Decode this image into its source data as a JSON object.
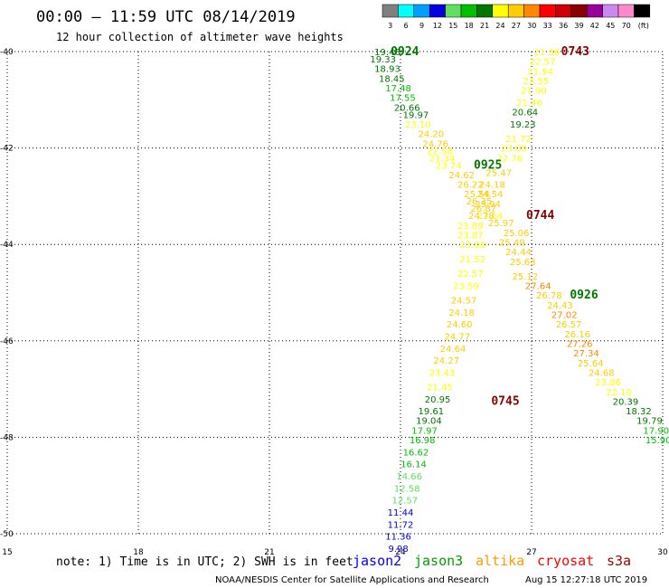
{
  "header": {
    "title": "00:00 – 11:59 UTC 08/14/2019",
    "subtitle": "12 hour collection of altimeter wave heights"
  },
  "legend": {
    "unit": "(ft)",
    "bins": [
      {
        "label": "3",
        "color": "#808080"
      },
      {
        "label": "6",
        "color": "#00ffff"
      },
      {
        "label": "9",
        "color": "#00a0ff"
      },
      {
        "label": "12",
        "color": "#0000e0"
      },
      {
        "label": "15",
        "color": "#60e060"
      },
      {
        "label": "18",
        "color": "#00c000"
      },
      {
        "label": "21",
        "color": "#007800"
      },
      {
        "label": "24",
        "color": "#ffff00"
      },
      {
        "label": "27",
        "color": "#ffcc00"
      },
      {
        "label": "30",
        "color": "#ff8800"
      },
      {
        "label": "33",
        "color": "#ff0000"
      },
      {
        "label": "36",
        "color": "#cc0000"
      },
      {
        "label": "39",
        "color": "#880000"
      },
      {
        "label": "42",
        "color": "#990099"
      },
      {
        "label": "45",
        "color": "#cc88ee"
      },
      {
        "label": "70",
        "color": "#ff88cc"
      },
      {
        "label": "",
        "color": "#000000"
      }
    ]
  },
  "footer": {
    "note": "note: 1) Time is in UTC; 2) SWH is in feet",
    "satellites": [
      {
        "name": "jason2",
        "color": "#0000ff"
      },
      {
        "name": "jason3",
        "color": "#00a000"
      },
      {
        "name": "altika",
        "color": "#ff9900"
      },
      {
        "name": "cryosat",
        "color": "#ff0000"
      },
      {
        "name": "s3a",
        "color": "#990000"
      }
    ],
    "credit": "NOAA/NESDIS Center for Satellite Applications and Research",
    "timestamp": "Aug 15 12:27:18 UTC 2019"
  },
  "chart_data": {
    "type": "scatter",
    "xlim": [
      15,
      30
    ],
    "ylim": [
      -50,
      -40
    ],
    "x_ticks": [
      15,
      18,
      21,
      24,
      27,
      30
    ],
    "y_ticks": [
      -40,
      -42,
      -44,
      -46,
      -48,
      -50
    ],
    "grid": true,
    "pass_labels": [
      {
        "text": "0924",
        "x": 24.1,
        "y": -40.0,
        "color": "#007800"
      },
      {
        "text": "0743",
        "x": 28.0,
        "y": -40.0,
        "color": "#880000"
      },
      {
        "text": "0925",
        "x": 26.0,
        "y": -42.35,
        "color": "#007800"
      },
      {
        "text": "0744",
        "x": 27.2,
        "y": -43.4,
        "color": "#880000"
      },
      {
        "text": "0926",
        "x": 28.2,
        "y": -45.05,
        "color": "#007800"
      },
      {
        "text": "0745",
        "x": 26.4,
        "y": -47.25,
        "color": "#880000"
      }
    ],
    "series": [
      {
        "name": "0924",
        "points": [
          {
            "x": 23.7,
            "y": -40.0,
            "v": 19.46
          },
          {
            "x": 23.6,
            "y": -40.15,
            "v": 19.33
          },
          {
            "x": 23.7,
            "y": -40.35,
            "v": 18.93
          },
          {
            "x": 23.8,
            "y": -40.55,
            "v": 18.45
          },
          {
            "x": 23.95,
            "y": -40.75,
            "v": 17.48
          },
          {
            "x": 24.05,
            "y": -40.95,
            "v": 17.55
          },
          {
            "x": 24.15,
            "y": -41.15,
            "v": 20.66
          },
          {
            "x": 24.35,
            "y": -41.3,
            "v": 19.97
          },
          {
            "x": 24.4,
            "y": -41.5,
            "v": 23.1
          },
          {
            "x": 24.7,
            "y": -41.7,
            "v": 24.2
          },
          {
            "x": 24.8,
            "y": -41.9,
            "v": 24.76
          },
          {
            "x": 24.9,
            "y": -42.05,
            "v": 22.58
          },
          {
            "x": 24.95,
            "y": -42.2,
            "v": 21.34
          },
          {
            "x": 25.1,
            "y": -42.35,
            "v": 23.74
          },
          {
            "x": 25.4,
            "y": -42.55,
            "v": 24.62
          },
          {
            "x": 25.6,
            "y": -42.75,
            "v": 26.22
          },
          {
            "x": 25.75,
            "y": -42.95,
            "v": 25.54
          },
          {
            "x": 25.8,
            "y": -43.1,
            "v": 26.35
          },
          {
            "x": 25.9,
            "y": -43.25,
            "v": 26.87
          },
          {
            "x": 26.05,
            "y": -43.4,
            "v": 23.64
          },
          {
            "x": 26.3,
            "y": -43.55,
            "v": 25.97
          },
          {
            "x": 26.65,
            "y": -43.75,
            "v": 25.06
          },
          {
            "x": 26.55,
            "y": -43.95,
            "v": 25.49
          },
          {
            "x": 26.7,
            "y": -44.15,
            "v": 24.44
          },
          {
            "x": 26.8,
            "y": -44.35,
            "v": 25.63
          },
          {
            "x": 26.85,
            "y": -44.65,
            "v": 25.12
          },
          {
            "x": 27.15,
            "y": -44.85,
            "v": 27.64
          },
          {
            "x": 27.4,
            "y": -45.05,
            "v": 26.78
          },
          {
            "x": 27.65,
            "y": -45.25,
            "v": 24.43
          },
          {
            "x": 27.75,
            "y": -45.45,
            "v": 27.02
          },
          {
            "x": 27.85,
            "y": -45.65,
            "v": 26.57
          },
          {
            "x": 28.05,
            "y": -45.85,
            "v": 26.16
          },
          {
            "x": 28.1,
            "y": -46.05,
            "v": 27.26
          },
          {
            "x": 28.25,
            "y": -46.25,
            "v": 27.34
          },
          {
            "x": 28.35,
            "y": -46.45,
            "v": 25.64
          },
          {
            "x": 28.6,
            "y": -46.65,
            "v": 24.68
          },
          {
            "x": 28.75,
            "y": -46.85,
            "v": 23.86
          },
          {
            "x": 29.0,
            "y": -47.05,
            "v": 22.1
          },
          {
            "x": 29.15,
            "y": -47.25,
            "v": 20.39
          },
          {
            "x": 29.45,
            "y": -47.45,
            "v": 18.32
          },
          {
            "x": 29.7,
            "y": -47.65,
            "v": 19.79
          },
          {
            "x": 29.85,
            "y": -47.85,
            "v": 17.9
          },
          {
            "x": 29.9,
            "y": -48.05,
            "v": 15.9
          }
        ]
      },
      {
        "name": "0743",
        "points": [
          {
            "x": 27.35,
            "y": -40.0,
            "v": 21.36
          },
          {
            "x": 27.25,
            "y": -40.2,
            "v": 22.57
          },
          {
            "x": 27.2,
            "y": -40.4,
            "v": 21.94
          },
          {
            "x": 27.1,
            "y": -40.6,
            "v": 23.55
          },
          {
            "x": 27.05,
            "y": -40.8,
            "v": 21.9
          },
          {
            "x": 26.95,
            "y": -41.05,
            "v": 21.46
          },
          {
            "x": 26.85,
            "y": -41.25,
            "v": 20.64
          },
          {
            "x": 26.8,
            "y": -41.5,
            "v": 19.23
          },
          {
            "x": 26.7,
            "y": -41.8,
            "v": 21.72
          },
          {
            "x": 26.6,
            "y": -42.0,
            "v": 23.0
          },
          {
            "x": 26.5,
            "y": -42.2,
            "v": 22.76
          },
          {
            "x": 26.25,
            "y": -42.5,
            "v": 25.47
          },
          {
            "x": 26.1,
            "y": -42.75,
            "v": 24.18
          },
          {
            "x": 26.05,
            "y": -42.95,
            "v": 24.54
          },
          {
            "x": 26.0,
            "y": -43.15,
            "v": 25.94
          },
          {
            "x": 25.85,
            "y": -43.4,
            "v": 24.78
          },
          {
            "x": 25.6,
            "y": -43.6,
            "v": 23.89
          },
          {
            "x": 25.6,
            "y": -43.8,
            "v": 23.87
          },
          {
            "x": 25.65,
            "y": -44.0,
            "v": 23.08
          },
          {
            "x": 25.65,
            "y": -44.3,
            "v": 21.52
          },
          {
            "x": 25.6,
            "y": -44.6,
            "v": 22.57
          },
          {
            "x": 25.5,
            "y": -44.85,
            "v": 23.59
          },
          {
            "x": 25.45,
            "y": -45.15,
            "v": 24.57
          },
          {
            "x": 25.4,
            "y": -45.4,
            "v": 24.18
          },
          {
            "x": 25.35,
            "y": -45.65,
            "v": 24.6
          },
          {
            "x": 25.3,
            "y": -45.9,
            "v": 24.77
          },
          {
            "x": 25.2,
            "y": -46.15,
            "v": 24.64
          },
          {
            "x": 25.05,
            "y": -46.4,
            "v": 24.27
          },
          {
            "x": 24.95,
            "y": -46.65,
            "v": 23.43
          },
          {
            "x": 24.9,
            "y": -46.95,
            "v": 21.45
          },
          {
            "x": 24.85,
            "y": -47.2,
            "v": 20.95
          },
          {
            "x": 24.7,
            "y": -47.45,
            "v": 19.61
          },
          {
            "x": 24.65,
            "y": -47.65,
            "v": 19.04
          },
          {
            "x": 24.55,
            "y": -47.85,
            "v": 17.97
          },
          {
            "x": 24.5,
            "y": -48.05,
            "v": 16.98
          },
          {
            "x": 24.35,
            "y": -48.3,
            "v": 16.62
          },
          {
            "x": 24.3,
            "y": -48.55,
            "v": 16.14
          },
          {
            "x": 24.2,
            "y": -48.8,
            "v": 14.66
          },
          {
            "x": 24.15,
            "y": -49.05,
            "v": 12.58
          },
          {
            "x": 24.1,
            "y": -49.3,
            "v": 12.57
          },
          {
            "x": 24.0,
            "y": -49.55,
            "v": 11.44
          },
          {
            "x": 24.0,
            "y": -49.8,
            "v": 11.72
          },
          {
            "x": 23.95,
            "y": -50.05,
            "v": 11.36
          },
          {
            "x": 23.95,
            "y": -50.3,
            "v": 9.98
          }
        ]
      }
    ]
  }
}
